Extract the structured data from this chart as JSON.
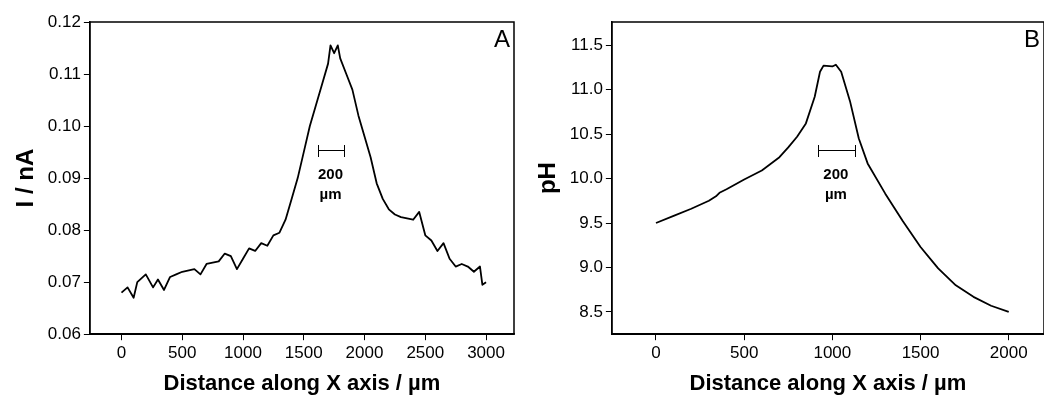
{
  "chart_data": [
    {
      "type": "line",
      "xlabel": "Distance along X axis / µm",
      "ylabel": "I / nA",
      "xlim": [
        -260,
        3230
      ],
      "xticks": [
        0,
        500,
        1000,
        1500,
        2000,
        2500,
        3000
      ],
      "ylim": [
        0.06,
        0.12
      ],
      "yticks": [
        {
          "value": 0.06,
          "label": "0.06"
        },
        {
          "value": 0.07,
          "label": "0.07"
        },
        {
          "value": 0.08,
          "label": "0.08"
        },
        {
          "value": 0.09,
          "label": "0.09"
        },
        {
          "value": 0.1,
          "label": "0.10"
        },
        {
          "value": 0.11,
          "label": "0.11"
        },
        {
          "value": 0.12,
          "label": "0.12"
        }
      ],
      "grid": false,
      "legend": false,
      "marker": "none",
      "line_style": "solid",
      "annotations": [
        "A",
        "200 µm"
      ],
      "series": [
        {
          "color": "#000000",
          "x": [
            0,
            50,
            100,
            130,
            200,
            260,
            300,
            350,
            400,
            450,
            500,
            600,
            650,
            700,
            800,
            850,
            900,
            950,
            1000,
            1050,
            1100,
            1150,
            1200,
            1250,
            1300,
            1350,
            1400,
            1450,
            1500,
            1550,
            1600,
            1650,
            1700,
            1720,
            1750,
            1780,
            1800,
            1850,
            1900,
            1950,
            2000,
            2050,
            2100,
            2150,
            2200,
            2250,
            2300,
            2400,
            2450,
            2500,
            2550,
            2600,
            2650,
            2700,
            2750,
            2800,
            2850,
            2900,
            2950,
            2970,
            3000
          ],
          "values": [
            0.068,
            0.069,
            0.067,
            0.07,
            0.0715,
            0.069,
            0.0705,
            0.0685,
            0.071,
            0.0715,
            0.072,
            0.0725,
            0.0715,
            0.0735,
            0.074,
            0.0755,
            0.075,
            0.0725,
            0.0745,
            0.0765,
            0.076,
            0.0775,
            0.077,
            0.079,
            0.0795,
            0.082,
            0.086,
            0.09,
            0.095,
            0.1,
            0.104,
            0.108,
            0.112,
            0.1155,
            0.114,
            0.1155,
            0.113,
            0.11,
            0.107,
            0.102,
            0.098,
            0.094,
            0.089,
            0.086,
            0.084,
            0.083,
            0.0825,
            0.082,
            0.0835,
            0.079,
            0.078,
            0.076,
            0.0775,
            0.0745,
            0.073,
            0.0735,
            0.073,
            0.072,
            0.073,
            0.0695,
            0.07
          ]
        }
      ]
    },
    {
      "type": "line",
      "xlabel": "Distance along X axis / µm",
      "ylabel": "pH",
      "xlim": [
        -250,
        2200
      ],
      "xticks": [
        0,
        500,
        1000,
        1500,
        2000
      ],
      "ylim": [
        8.25,
        11.76
      ],
      "yticks": [
        {
          "value": 8.5,
          "label": "8.5"
        },
        {
          "value": 9,
          "label": "9.0"
        },
        {
          "value": 9.5,
          "label": "9.5"
        },
        {
          "value": 10,
          "label": "10.0"
        },
        {
          "value": 10.5,
          "label": "10.5"
        },
        {
          "value": 11,
          "label": "11.0"
        },
        {
          "value": 11.5,
          "label": "11.5"
        }
      ],
      "grid": false,
      "legend": false,
      "marker": "none",
      "line_style": "solid",
      "annotations": [
        "B",
        "200 µm"
      ],
      "series": [
        {
          "color": "#000000",
          "x": [
            0,
            100,
            200,
            300,
            340,
            360,
            400,
            500,
            600,
            700,
            750,
            800,
            850,
            900,
            930,
            950,
            1000,
            1020,
            1050,
            1100,
            1150,
            1200,
            1300,
            1400,
            1500,
            1600,
            1700,
            1800,
            1900,
            2000
          ],
          "values": [
            9.5,
            9.58,
            9.66,
            9.75,
            9.8,
            9.84,
            9.88,
            9.99,
            10.09,
            10.24,
            10.35,
            10.47,
            10.62,
            10.92,
            11.2,
            11.27,
            11.26,
            11.28,
            11.2,
            10.87,
            10.45,
            10.17,
            9.83,
            9.52,
            9.23,
            8.99,
            8.8,
            8.67,
            8.57,
            8.5
          ]
        }
      ]
    }
  ]
}
